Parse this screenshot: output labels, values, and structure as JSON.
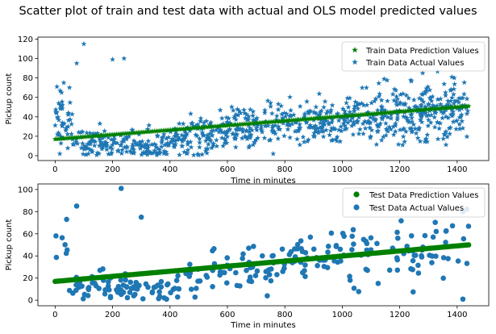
{
  "figure": {
    "title": "Scatter plot of train and test data with actual and OLS model predicted values"
  },
  "chart_data": [
    {
      "type": "scatter",
      "xlabel": "Time in minutes",
      "ylabel": "Pickup count",
      "xlim": [
        -60,
        1510
      ],
      "ylim": [
        -5,
        122
      ],
      "xticks": [
        0,
        200,
        400,
        600,
        800,
        1000,
        1200,
        1400
      ],
      "yticks": [
        0,
        20,
        40,
        60,
        80,
        100,
        120
      ],
      "legend": "top-right",
      "series": [
        {
          "name": "Train Data Prediction Values",
          "marker": "star",
          "color": "#008000",
          "trend": {
            "x_start": 0,
            "x_end": 1440,
            "y_start": 17,
            "y_end": 51
          },
          "points_count": 230
        },
        {
          "name": "Train Data Actual Values",
          "marker": "star",
          "color": "#1f77b4",
          "outliers": [
            [
              100,
              115
            ],
            [
              75,
              95
            ],
            [
              200,
              99
            ],
            [
              240,
              100
            ],
            [
              30,
              75
            ],
            [
              50,
              70
            ],
            [
              1280,
              85
            ],
            [
              1390,
              80
            ]
          ],
          "points_count": 900
        }
      ]
    },
    {
      "type": "scatter",
      "xlabel": "Time in minutes",
      "ylabel": "Pickup count",
      "xlim": [
        -60,
        1510
      ],
      "ylim": [
        -5,
        105
      ],
      "xticks": [
        0,
        200,
        400,
        600,
        800,
        1000,
        1200,
        1400
      ],
      "yticks": [
        0,
        20,
        40,
        60,
        80,
        100
      ],
      "legend": "top-right",
      "series": [
        {
          "name": "Test Data Prediction Values",
          "marker": "circle",
          "color": "#008000",
          "trend": {
            "x_start": 0,
            "x_end": 1440,
            "y_start": 17,
            "y_end": 50
          },
          "points_count": 200
        },
        {
          "name": "Test Data Actual Values",
          "marker": "circle",
          "color": "#1f77b4",
          "outliers": [
            [
              230,
              101
            ],
            [
              75,
              85
            ],
            [
              40,
              73
            ],
            [
              300,
              75
            ],
            [
              1420,
              80
            ],
            [
              1420,
              1
            ]
          ],
          "points_count": 260
        }
      ]
    }
  ]
}
